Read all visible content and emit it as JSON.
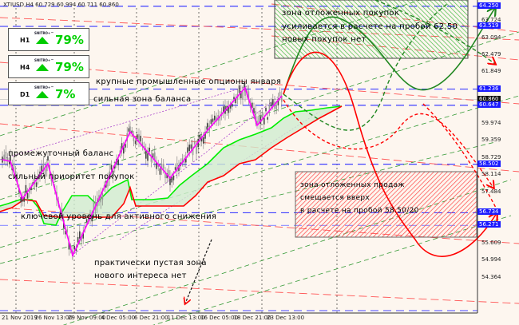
{
  "header": {
    "symbol_line": "XTIUSD,H4  60.729 60.994 60.711 60.860"
  },
  "indicators": [
    {
      "timeframe": "H1",
      "brand": "SNITRO+™",
      "direction": "up",
      "percent": "79%"
    },
    {
      "timeframe": "H4",
      "brand": "SNITRO+™",
      "direction": "up",
      "percent": "79%"
    },
    {
      "timeframe": "D1",
      "brand": "SNITRO+™",
      "direction": "up",
      "percent": "7%"
    }
  ],
  "annotations": {
    "options": "крупные промышленные опционы января",
    "balance_zone": "сильная зона баланса",
    "intermediate": "промежуточный баланс",
    "buy_priority": "сильный приоритет покупок",
    "key_level": "ключевой уровень для активного снижения",
    "empty_zone_1": "практически пустая зона",
    "empty_zone_2": "нового интереса нет",
    "buy_box": [
      "зона отложенных покупок",
      "усиливается в расчете на пробой 62,50",
      "новых покупок нет"
    ],
    "sell_box": [
      "зона отложенных продаж",
      "смещается вверх",
      "в расчете на пробой 58.50/20"
    ]
  },
  "colors": {
    "background": "#fdf6ef",
    "level_line": "#4040ff",
    "bull_line": "#00ee00",
    "bear_line": "#ff0000",
    "zigzag": "#ff00ff",
    "buy_zone": "#33bb33",
    "sell_zone": "#ff3333"
  },
  "chart_data": {
    "type": "candlestick",
    "symbol": "XTIUSD",
    "timeframe": "H4",
    "ohlc_last": {
      "open": 60.729,
      "high": 60.994,
      "low": 60.711,
      "close": 60.86
    },
    "y_ticks": [
      "63.724",
      "63.094",
      "62.479",
      "61.849",
      "59.974",
      "59.359",
      "58.729",
      "58.114",
      "57.484",
      "55.609",
      "54.994",
      "54.364"
    ],
    "levels": [
      {
        "label": "64.250",
        "value": 64.25
      },
      {
        "label": "63.519",
        "value": 63.519
      },
      {
        "label": "61.236",
        "value": 61.236
      },
      {
        "label": "60.860",
        "value": 60.86,
        "current": true
      },
      {
        "label": "60.647",
        "value": 60.647
      },
      {
        "label": "58.502",
        "value": 58.502
      },
      {
        "label": "56.734",
        "value": 56.734
      },
      {
        "label": "56.271",
        "value": 56.271
      }
    ],
    "x_ticks": [
      "21 Nov 2019",
      "26 Nov 13:00",
      "29 Nov 09:00",
      "4 Dec 05:00",
      "6 Dec 21:00",
      "11 Dec 13:00",
      "16 Dec 05:00",
      "18 Dec 21:00",
      "23 Dec 13:00"
    ],
    "ylim": [
      54.0,
      64.5
    ]
  }
}
